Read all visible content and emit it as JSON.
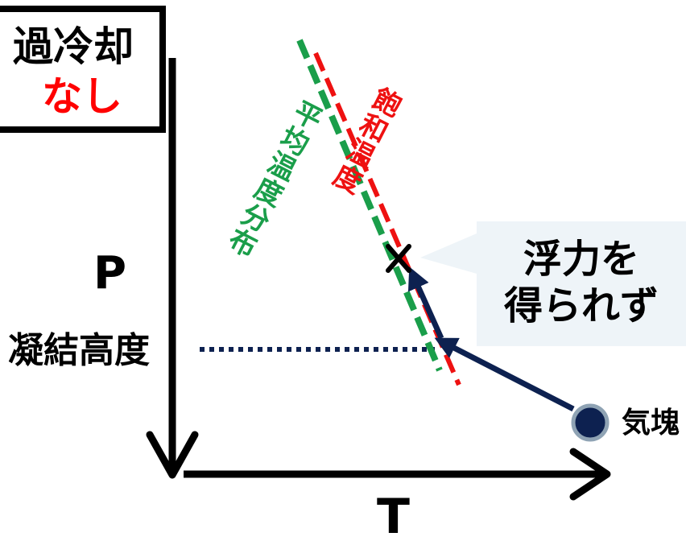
{
  "title": {
    "line1": "過冷却",
    "line2": "なし",
    "line2_color": "#ff0000"
  },
  "axes": {
    "y_label": "P",
    "x_label": "T"
  },
  "condensation_level_label": "凝結高度",
  "parcel_label": "気塊",
  "saturation_label": "飽和温度",
  "saturation_color": "#ee1111",
  "environment_label": "平均温度分布",
  "environment_color": "#1a9e4a",
  "callout": {
    "line1": "浮力を",
    "line2": "得られず"
  },
  "colors": {
    "axis": "#000000",
    "path": "#0d2150",
    "parcel_fill": "#0d2150",
    "parcel_ring": "#8fa3b4",
    "callout_bg": "#eef4f8"
  }
}
